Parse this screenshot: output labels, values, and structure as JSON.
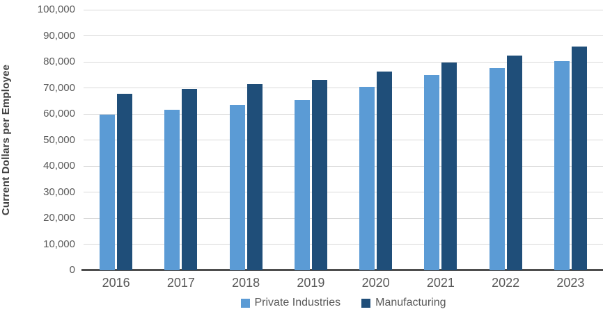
{
  "chart_data": {
    "type": "bar",
    "title": "",
    "ylabel": "Current Dollars per Employee",
    "xlabel": "",
    "categories": [
      "2016",
      "2017",
      "2018",
      "2019",
      "2020",
      "2021",
      "2022",
      "2023"
    ],
    "series": [
      {
        "name": "Private Industries",
        "color": "#5B9BD5",
        "values": [
          59700,
          61700,
          63500,
          65300,
          70500,
          75000,
          77700,
          80200
        ]
      },
      {
        "name": "Manufacturing",
        "color": "#1F4E79",
        "values": [
          67700,
          69600,
          71500,
          73000,
          76300,
          79700,
          82500,
          85800
        ]
      }
    ],
    "ylim": [
      0,
      100000
    ],
    "ytick_step": 10000,
    "ytick_labels": [
      "0",
      "10,000",
      "20,000",
      "30,000",
      "40,000",
      "50,000",
      "60,000",
      "70,000",
      "80,000",
      "90,000",
      "100,000"
    ],
    "grid": true,
    "legend_position": "bottom",
    "colors": {
      "gridline": "#D9D9D9",
      "axis_line": "#4D4D4D",
      "tick_text": "#595959",
      "axis_title_text": "#404040"
    }
  }
}
